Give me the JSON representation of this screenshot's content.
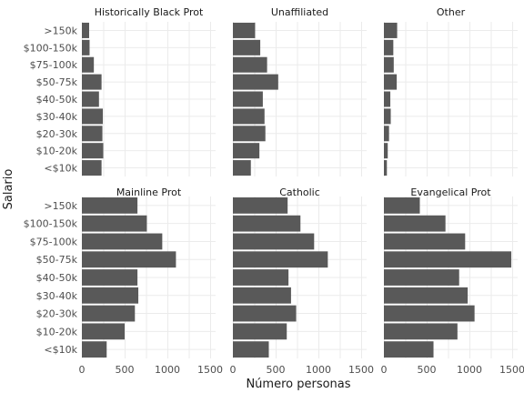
{
  "chart_data": {
    "type": "bar",
    "orientation": "horizontal",
    "xlabel": "Número personas",
    "ylabel": "Salario",
    "xlim": [
      0,
      1500
    ],
    "x_ticks": [
      "0",
      "500",
      "1000",
      "1500"
    ],
    "categories": [
      "<$10k",
      "$10-20k",
      "$20-30k",
      "$30-40k",
      "$40-50k",
      "$50-75k",
      "$75-100k",
      "$100-150k",
      ">150k"
    ],
    "grid": true,
    "panels": [
      {
        "name": "Historically Black Prot",
        "values": [
          230,
          250,
          240,
          245,
          200,
          230,
          140,
          90,
          85
        ]
      },
      {
        "name": "Unaffiliated",
        "values": [
          210,
          310,
          380,
          370,
          350,
          530,
          400,
          320,
          260
        ]
      },
      {
        "name": "Other",
        "values": [
          35,
          45,
          60,
          80,
          75,
          150,
          115,
          110,
          155
        ]
      },
      {
        "name": "Mainline Prot",
        "values": [
          290,
          500,
          620,
          660,
          650,
          1100,
          940,
          760,
          650
        ]
      },
      {
        "name": "Catholic",
        "values": [
          420,
          630,
          740,
          680,
          650,
          1110,
          950,
          790,
          640
        ]
      },
      {
        "name": "Evangelical Prot",
        "values": [
          580,
          860,
          1060,
          980,
          880,
          1490,
          950,
          720,
          420
        ]
      }
    ]
  }
}
